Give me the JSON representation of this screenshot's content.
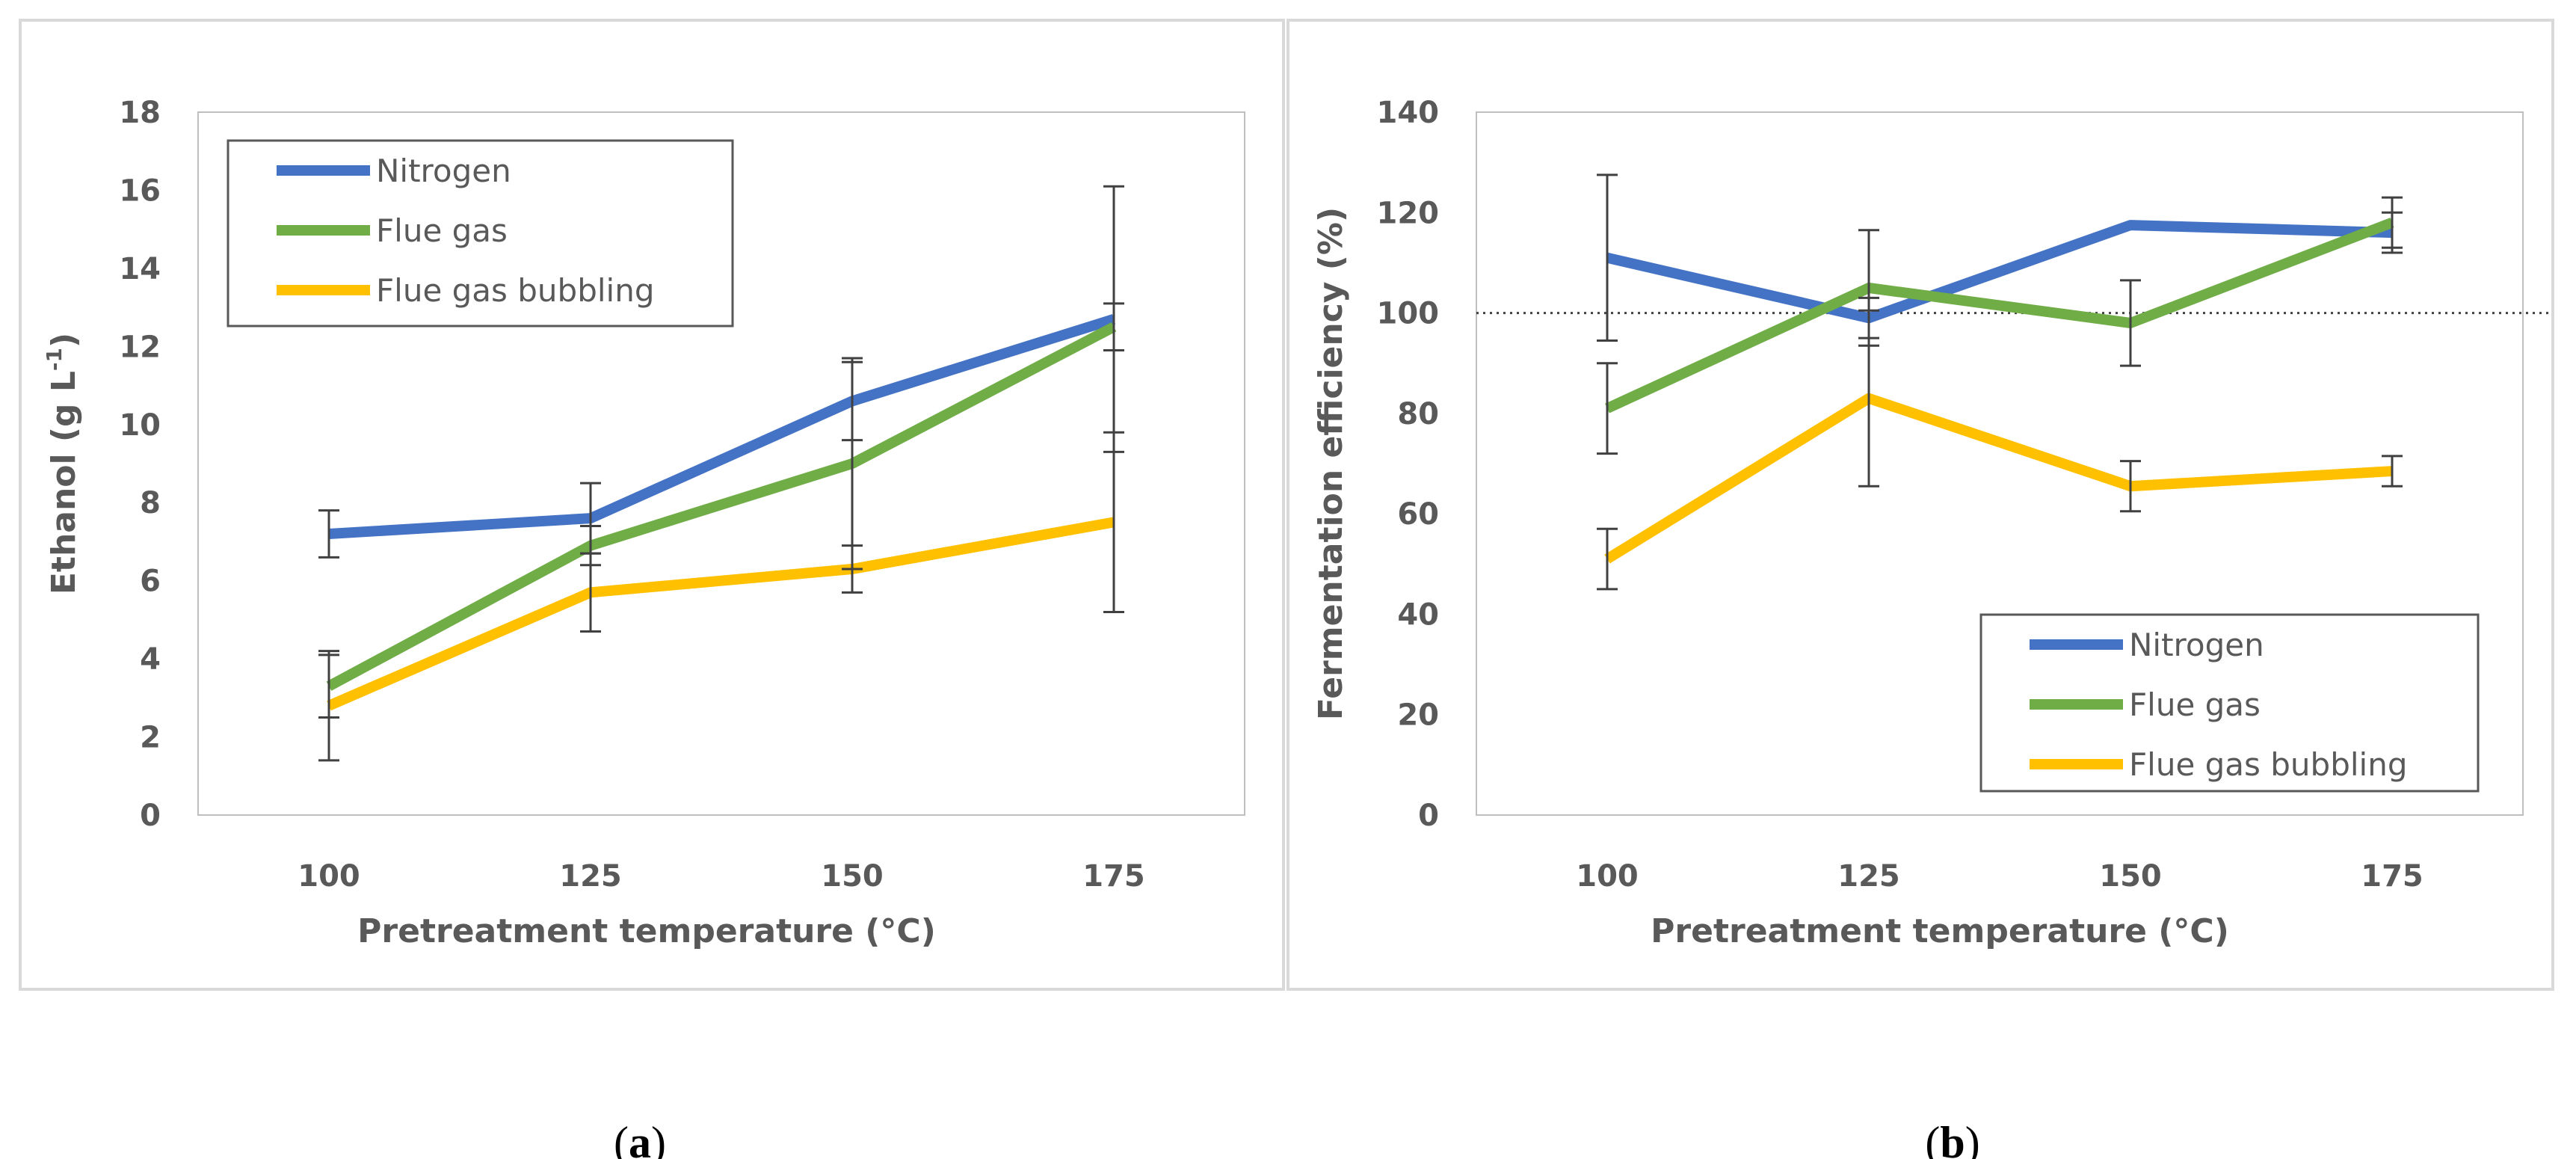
{
  "chart_data": [
    {
      "type": "line",
      "panel_label": "a",
      "title": "",
      "xlabel": "Pretreatment temperature (°C)",
      "ylabel": "Ethanol  (g L",
      "ylabel_superscript": "-1",
      "ylabel_close": ")",
      "categories": [
        "100",
        "125",
        "150",
        "175"
      ],
      "ylim": [
        0,
        18
      ],
      "yticks": [
        0,
        2,
        4,
        6,
        8,
        10,
        12,
        14,
        16,
        18
      ],
      "grid": false,
      "legend_position": "top-left",
      "series": [
        {
          "name": "Nitrogen",
          "color": "#4472C4",
          "values": [
            7.2,
            7.6,
            10.6,
            12.7
          ],
          "errors": [
            0.6,
            0.9,
            1.0,
            3.4
          ]
        },
        {
          "name": "Flue gas",
          "color": "#70AD47",
          "values": [
            3.3,
            6.9,
            9.0,
            12.5
          ],
          "errors": [
            0.8,
            0.5,
            2.7,
            0.6
          ]
        },
        {
          "name": "Flue gas bubbling",
          "color": "#FFC000",
          "values": [
            2.8,
            5.7,
            6.3,
            7.5
          ],
          "errors": [
            1.4,
            1.0,
            0.6,
            2.3
          ]
        }
      ]
    },
    {
      "type": "line",
      "panel_label": "b",
      "title": "",
      "xlabel": "Pretreatment temperature (°C)",
      "ylabel": "Fermentation efficiency (%)",
      "categories": [
        "100",
        "125",
        "150",
        "175"
      ],
      "ylim": [
        0,
        140
      ],
      "yticks": [
        0,
        20,
        40,
        60,
        80,
        100,
        120,
        140
      ],
      "reference_line": 100,
      "grid": false,
      "legend_position": "bottom-right",
      "series": [
        {
          "name": "Nitrogen",
          "color": "#4472C4",
          "values": [
            111,
            99,
            117.5,
            116
          ],
          "errors": [
            16.5,
            4,
            0,
            4
          ]
        },
        {
          "name": "Flue gas",
          "color": "#70AD47",
          "values": [
            81,
            105,
            98,
            118
          ],
          "errors": [
            9,
            11.5,
            8.5,
            5
          ]
        },
        {
          "name": "Flue gas bubbling",
          "color": "#FFC000",
          "values": [
            51,
            83,
            65.5,
            68.5
          ],
          "errors": [
            6,
            17.5,
            5,
            3
          ]
        }
      ]
    }
  ]
}
